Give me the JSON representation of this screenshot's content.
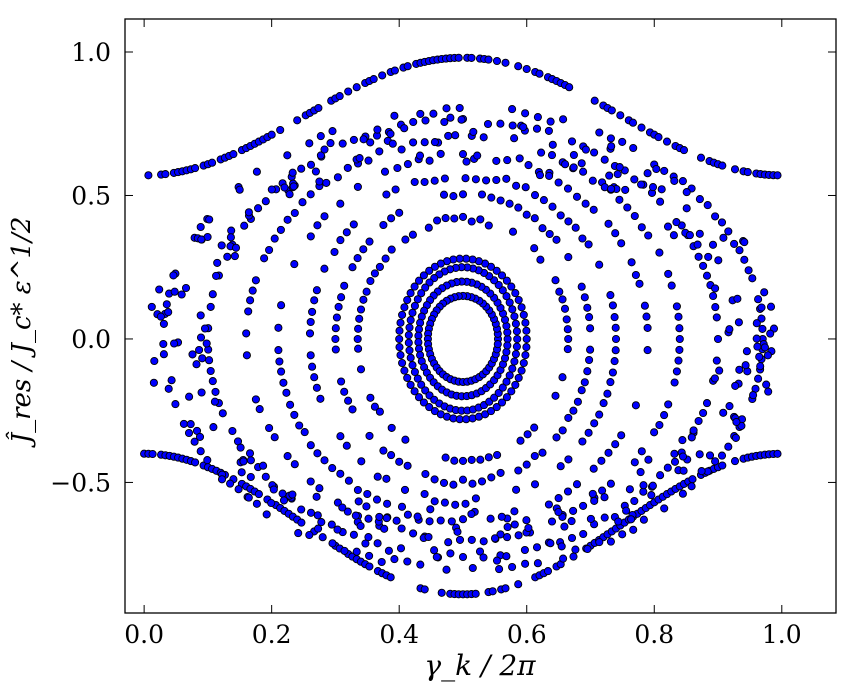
{
  "chart_data": {
    "type": "scatter",
    "xlabel": "γ_k / 2π",
    "ylabel": "Ĵ_res / J_c* ε^1/2",
    "xlim": [
      -0.03,
      1.085
    ],
    "ylim": [
      -0.955,
      1.115
    ],
    "xticks": [
      0.0,
      0.2,
      0.4,
      0.6,
      0.8,
      1.0
    ],
    "xtick_labels": [
      "0.0",
      "0.2",
      "0.4",
      "0.6",
      "0.8",
      "1.0"
    ],
    "yticks": [
      -0.5,
      0.0,
      0.5,
      1.0
    ],
    "ytick_labels": [
      "−0.5",
      "0.0",
      "0.5",
      "1.0"
    ],
    "grid": false,
    "legend": "none",
    "marker_color": "#0000ff",
    "marker_edge_color": "#000000",
    "description_of_orbits": {
      "circulating_top": {
        "x_range": [
          0.0,
          1.0
        ],
        "y_min": 0.57,
        "y_max": 0.98,
        "peak_x": 0.5
      },
      "circulating_bottom": {
        "x_range": [
          0.0,
          1.0
        ],
        "y_edge": -0.4,
        "y_min": -0.89,
        "trough_x": 0.5
      },
      "librating_center": [
        0.5,
        0.0
      ],
      "librating_orbits": [
        {
          "x_half_width": 0.055,
          "y_half_height": 0.15
        },
        {
          "x_half_width": 0.07,
          "y_half_height": 0.2
        },
        {
          "x_half_width": 0.085,
          "y_half_height": 0.25
        },
        {
          "x_half_width": 0.1,
          "y_half_height": 0.28
        },
        {
          "x_half_width": 0.165,
          "y_half_height": 0.42
        },
        {
          "x_half_width": 0.2,
          "y_half_height": 0.5
        },
        {
          "x_half_width": 0.24,
          "y_half_height": 0.57
        },
        {
          "x_half_width": 0.29,
          "y_half_height": 0.64
        },
        {
          "x_half_width": 0.34,
          "y_half_height": 0.7
        },
        {
          "x_half_width": 0.4,
          "y_half_height": 0.76
        },
        {
          "x_half_width": 0.47,
          "y_half_height": 0.8
        }
      ]
    }
  }
}
